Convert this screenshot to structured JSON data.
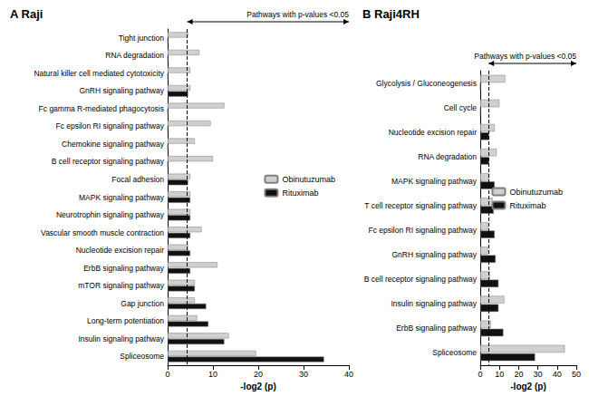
{
  "chart_data": [
    {
      "type": "bar",
      "title": "A Raji",
      "orientation": "horizontal",
      "x_label": "-log2 (p)",
      "categories": [
        "Tight junction",
        "RNA degradation",
        "Natural killer cell mediated cytotoxicity",
        "GnRH signaling pathway",
        "Fc gamma R-mediated phagocytosis",
        "Fc epsilon RI signaling pathway",
        "Chemokine signaling pathway",
        "B cell receptor signaling pathway",
        "Focal adhesion",
        "MAPK signaling pathway",
        "Neurotrophin signaling pathway",
        "Vascular smooth muscle contraction",
        "Nucleotide excision repair",
        "ErbB signaling pathway",
        "mTOR signaling pathway",
        "Gap junction",
        "Long-term potentiation",
        "Insulin signaling pathway",
        "Spliceosome"
      ],
      "series": [
        {
          "name": "Obinutuzumab",
          "color": "#d0d0d0",
          "values": [
            4.5,
            7,
            5,
            5,
            12.5,
            9.5,
            6,
            10,
            5,
            5,
            5,
            7.5,
            4.5,
            11,
            6,
            6,
            6.5,
            13.5,
            19.5
          ]
        },
        {
          "name": "Rituximab",
          "color": "#111111",
          "values": [
            0,
            0,
            0,
            4.5,
            0,
            0,
            0,
            0,
            4.5,
            5,
            5,
            5,
            5,
            5,
            6,
            8.5,
            9,
            12.5,
            34.5
          ]
        }
      ],
      "xlim": [
        0,
        40
      ],
      "xticks": [
        0,
        10,
        20,
        30,
        40
      ],
      "grid": false,
      "legend": "right",
      "annotation": {
        "text": "Pathways with p-values <0.05",
        "threshold": 4.32
      }
    },
    {
      "type": "bar",
      "title": "B Raji4RH",
      "orientation": "horizontal",
      "x_label": "-log2 (p)",
      "categories": [
        "Glycolysis / Gluconeogenesis",
        "Cell cycle",
        "Nucleotide excision repair",
        "RNA degradation",
        "MAPK signaling pathway",
        "T cell receptor signaling pathway",
        "Fc epsilon RI signaling pathway",
        "GnRH signaling pathway",
        "B cell receptor signaling pathway",
        "Insulin signaling pathway",
        "ErbB signaling pathway",
        "Spliceosome"
      ],
      "series": [
        {
          "name": "Obinutuzumab",
          "color": "#d0d0d0",
          "values": [
            13,
            10,
            7.5,
            8.5,
            4.5,
            6.5,
            4,
            4,
            5,
            12.5,
            5.5,
            44
          ]
        },
        {
          "name": "Rituximab",
          "color": "#111111",
          "values": [
            0,
            0,
            4.5,
            4.5,
            7.5,
            7,
            7.5,
            8,
            9.5,
            9.5,
            12,
            28.5
          ]
        }
      ],
      "xlim": [
        0,
        50
      ],
      "xticks": [
        0,
        10,
        20,
        30,
        40,
        50
      ],
      "grid": false,
      "legend": "right",
      "annotation": {
        "text": "Pathways with p-values <0.05",
        "threshold": 4.32
      }
    }
  ]
}
